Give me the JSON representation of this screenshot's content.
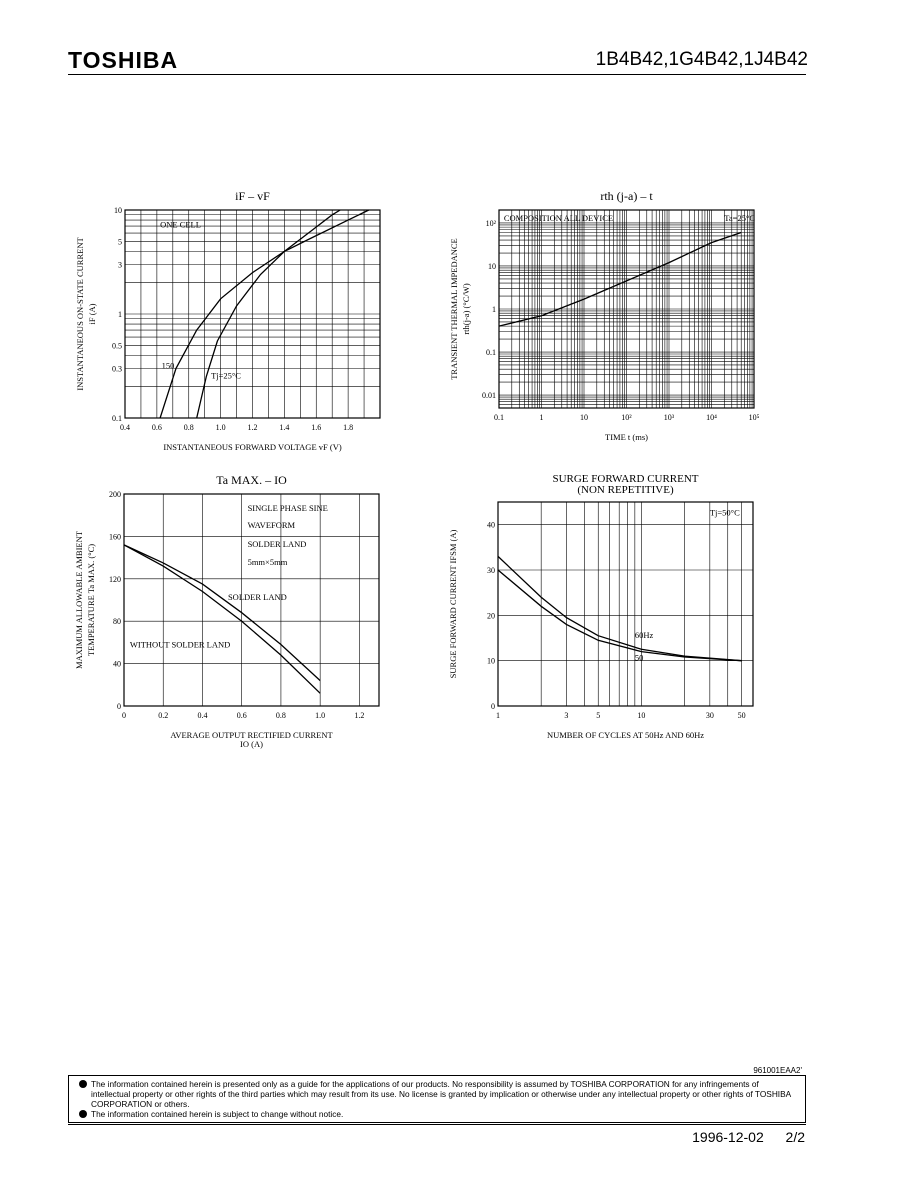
{
  "header": {
    "brand": "TOSHIBA",
    "part_numbers": "1B4B42,1G4B42,1J4B42"
  },
  "chart_data": [
    {
      "id": "if_vf",
      "type": "line",
      "title": "iF – vF",
      "xlabel": "INSTANTANEOUS FORWARD VOLTAGE   vF   (V)",
      "ylabel_lines": [
        "INSTANTANEOUS ON-STATE CURRENT",
        "iF   (A)"
      ],
      "xlim": [
        0.4,
        2.0
      ],
      "ylim": [
        0.1,
        10
      ],
      "yscale": "log",
      "x_ticks": [
        "0.4",
        "0.6",
        "0.8",
        "1.0",
        "1.2",
        "1.4",
        "1.6",
        "1.8"
      ],
      "y_ticks": [
        "0.1",
        "0.3",
        "0.5",
        "1",
        "3",
        "5",
        "10"
      ],
      "annotations": [
        {
          "text": "ONE CELL",
          "x": 0.62,
          "y": 6.8
        },
        {
          "text": "150",
          "x": 0.63,
          "y": 0.3
        },
        {
          "text": "Tj=25°C",
          "x": 0.94,
          "y": 0.24
        }
      ],
      "series": [
        {
          "name": "150",
          "points": [
            [
              0.62,
              0.1
            ],
            [
              0.72,
              0.3
            ],
            [
              0.85,
              0.7
            ],
            [
              1.0,
              1.4
            ],
            [
              1.2,
              2.5
            ],
            [
              1.4,
              4.0
            ],
            [
              1.55,
              5.2
            ],
            [
              1.8,
              8.0
            ],
            [
              1.93,
              10
            ]
          ]
        },
        {
          "name": "25",
          "points": [
            [
              0.85,
              0.1
            ],
            [
              0.91,
              0.25
            ],
            [
              0.98,
              0.55
            ],
            [
              1.1,
              1.2
            ],
            [
              1.25,
              2.4
            ],
            [
              1.4,
              4.0
            ],
            [
              1.55,
              6.0
            ],
            [
              1.7,
              9.0
            ],
            [
              1.75,
              10
            ]
          ]
        }
      ]
    },
    {
      "id": "rth_t",
      "type": "line",
      "title": "rth (j-a) – t",
      "xlabel": "TIME   t   (ms)",
      "ylabel_lines": [
        "TRANSIENT THERMAL IMPEDANCE",
        "rth(j-a)  (°C/W)"
      ],
      "xlim": [
        0.1,
        100000
      ],
      "ylim": [
        0.005,
        200
      ],
      "xscale": "log",
      "yscale": "log",
      "x_ticks": [
        "0.1",
        "1",
        "10",
        "10²",
        "10³",
        "10⁴",
        "10⁵"
      ],
      "y_ticks": [
        "0.01",
        "0.1",
        "1",
        "10",
        "10²"
      ],
      "annotations": [
        {
          "text": "COMPOSITION ALL DEVICE",
          "x": 0.13,
          "y": 110
        },
        {
          "text": "Ta=25°C",
          "x": 20000,
          "y": 110
        }
      ],
      "series": [
        {
          "name": "rth",
          "points": [
            [
              0.1,
              0.4
            ],
            [
              1,
              0.7
            ],
            [
              10,
              1.7
            ],
            [
              100,
              4.5
            ],
            [
              1000,
              12
            ],
            [
              10000,
              35
            ],
            [
              50000,
              60
            ]
          ]
        }
      ]
    },
    {
      "id": "ta_io",
      "type": "line",
      "title": "Ta MAX. – IO",
      "xlabel": "AVERAGE OUTPUT RECTIFIED CURRENT",
      "xlabel2": "IO   (A)",
      "ylabel_lines": [
        "MAXIMUM ALLOWABLE AMBIENT",
        "TEMPERATURE   Ta MAX.   (°C)"
      ],
      "xlim": [
        0,
        1.3
      ],
      "ylim": [
        0,
        200
      ],
      "x_ticks": [
        "0",
        "0.2",
        "0.4",
        "0.6",
        "0.8",
        "1.0",
        "1.2"
      ],
      "y_ticks": [
        "0",
        "40",
        "80",
        "120",
        "160",
        "200"
      ],
      "annotations": [
        {
          "text": "SINGLE PHASE SINE",
          "x": 0.63,
          "y": 184
        },
        {
          "text": "WAVEFORM",
          "x": 0.63,
          "y": 168
        },
        {
          "text": "SOLDER LAND",
          "x": 0.63,
          "y": 150
        },
        {
          "text": "5mm×5mm",
          "x": 0.63,
          "y": 133
        },
        {
          "text": "SOLDER LAND",
          "x": 0.53,
          "y": 100
        },
        {
          "text": "WITHOUT SOLDER LAND",
          "x": 0.03,
          "y": 55
        }
      ],
      "series": [
        {
          "name": "SOLDER LAND",
          "points": [
            [
              0,
              152
            ],
            [
              0.2,
              135
            ],
            [
              0.4,
              115
            ],
            [
              0.6,
              88
            ],
            [
              0.8,
              58
            ],
            [
              1.0,
              24
            ]
          ]
        },
        {
          "name": "WITHOUT SOLDER LAND",
          "points": [
            [
              0,
              152
            ],
            [
              0.2,
              132
            ],
            [
              0.4,
              108
            ],
            [
              0.6,
              80
            ],
            [
              0.8,
              48
            ],
            [
              1.0,
              12
            ]
          ]
        }
      ]
    },
    {
      "id": "ifsm",
      "type": "line",
      "title_lines": [
        "SURGE FORWARD CURRENT",
        "(NON REPETITIVE)"
      ],
      "xlabel": "NUMBER OF CYCLES AT 50Hz AND 60Hz",
      "ylabel_lines": [
        "SURGE FORWARD CURRENT   IFSM   (A)"
      ],
      "xlim": [
        1,
        60
      ],
      "ylim": [
        0,
        45
      ],
      "xscale": "log",
      "x_ticks": [
        "1",
        "3",
        "5",
        "10",
        "30",
        "50"
      ],
      "y_ticks": [
        "0",
        "10",
        "20",
        "30",
        "40"
      ],
      "annotations": [
        {
          "text": "Tj=50°C",
          "x": 30,
          "y": 42
        },
        {
          "text": "60Hz",
          "x": 9,
          "y": 15
        },
        {
          "text": "50",
          "x": 9,
          "y": 10
        }
      ],
      "series": [
        {
          "name": "60Hz",
          "points": [
            [
              1,
              33
            ],
            [
              2,
              24
            ],
            [
              3,
              19.5
            ],
            [
              5,
              15.5
            ],
            [
              10,
              12.5
            ],
            [
              20,
              11
            ],
            [
              50,
              10
            ]
          ]
        },
        {
          "name": "50",
          "points": [
            [
              1,
              30
            ],
            [
              2,
              22
            ],
            [
              3,
              18
            ],
            [
              5,
              14.5
            ],
            [
              10,
              12
            ],
            [
              20,
              10.8
            ],
            [
              50,
              10
            ]
          ]
        }
      ]
    }
  ],
  "notice": {
    "code": "961001EAA2'",
    "items": [
      "The information contained herein is presented only as a guide for the applications of our products. No responsibility is assumed by TOSHIBA CORPORATION for any infringements of intellectual property or other rights of the third parties which may result from its use. No license is granted by implication or otherwise under any intellectual property or other rights of TOSHIBA CORPORATION or others.",
      "The information contained herein is subject to change without notice."
    ]
  },
  "footer": {
    "date": "1996-12-02",
    "page": "2/2"
  }
}
